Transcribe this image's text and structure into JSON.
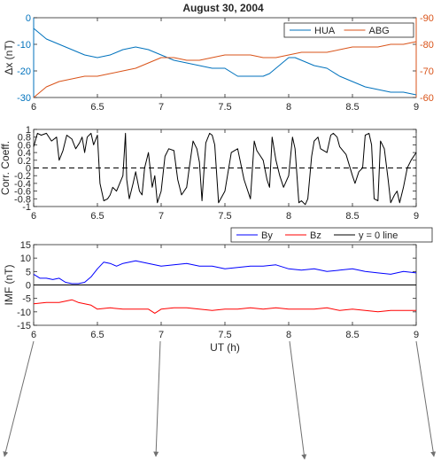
{
  "chart_data": [
    {
      "type": "line",
      "title": "August 30, 2004",
      "xlabel": "",
      "ylabel": "Δx (nT)",
      "xlim": [
        6,
        9
      ],
      "ylim": [
        -30,
        0
      ],
      "y2lim": [
        -90,
        -60
      ],
      "x_ticks": [
        "6",
        "6.5",
        "7",
        "7.5",
        "8",
        "8.5",
        "9"
      ],
      "y_ticks": [
        "0",
        "-10",
        "-20",
        "-30"
      ],
      "y2_ticks": [
        "-60",
        "-70",
        "-80",
        "-90"
      ],
      "legend_position": "top-right",
      "colors": {
        "HUA": "#0072bd",
        "ABG": "#d95319"
      },
      "series": [
        {
          "name": "HUA",
          "axis": "left",
          "x": [
            6.0,
            6.05,
            6.1,
            6.2,
            6.3,
            6.4,
            6.5,
            6.6,
            6.7,
            6.8,
            6.9,
            7.0,
            7.1,
            7.2,
            7.3,
            7.4,
            7.5,
            7.6,
            7.7,
            7.8,
            7.85,
            7.9,
            7.95,
            8.0,
            8.05,
            8.1,
            8.2,
            8.3,
            8.4,
            8.5,
            8.6,
            8.7,
            8.8,
            8.9,
            9.0
          ],
          "values": [
            -4,
            -6,
            -8,
            -10,
            -12,
            -14,
            -15,
            -14,
            -12,
            -11,
            -12,
            -14,
            -16,
            -17,
            -18,
            -19,
            -19,
            -22,
            -22,
            -22,
            -21,
            -19,
            -17,
            -15,
            -15,
            -16,
            -18,
            -19,
            -22,
            -24,
            -26,
            -27,
            -28,
            -28,
            -29
          ]
        },
        {
          "name": "ABG",
          "axis": "right",
          "x": [
            6.0,
            6.05,
            6.1,
            6.2,
            6.3,
            6.4,
            6.5,
            6.6,
            6.7,
            6.8,
            6.9,
            7.0,
            7.1,
            7.2,
            7.3,
            7.4,
            7.5,
            7.6,
            7.7,
            7.8,
            7.9,
            8.0,
            8.1,
            8.2,
            8.3,
            8.4,
            8.5,
            8.6,
            8.7,
            8.8,
            8.9,
            9.0
          ],
          "values": [
            -60,
            -62,
            -64,
            -66,
            -67,
            -68,
            -68,
            -69,
            -70,
            -71,
            -73,
            -75,
            -75,
            -74,
            -74,
            -75,
            -76,
            -76,
            -76,
            -75,
            -75,
            -76,
            -77,
            -77,
            -77,
            -78,
            -79,
            -79,
            -79,
            -80,
            -80,
            -81
          ]
        }
      ]
    },
    {
      "type": "line",
      "title": "",
      "xlabel": "",
      "ylabel": "Corr. Coeff.",
      "xlim": [
        6,
        9
      ],
      "ylim": [
        -1,
        1
      ],
      "x_ticks": [
        "6",
        "6.5",
        "7",
        "7.5",
        "8",
        "8.5",
        "9"
      ],
      "y_ticks": [
        "1",
        "0.8",
        "0.6",
        "0.4",
        "0.2",
        "0",
        "-0.2",
        "-0.4",
        "-0.6",
        "-0.8",
        "-1"
      ],
      "reference_line": {
        "y": 0,
        "style": "dashed"
      },
      "colors": {
        "line": "#000000"
      },
      "series": [
        {
          "x": [
            6.0,
            6.03,
            6.06,
            6.1,
            6.14,
            6.18,
            6.2,
            6.23,
            6.26,
            6.3,
            6.33,
            6.36,
            6.38,
            6.4,
            6.42,
            6.45,
            6.47,
            6.5,
            6.52,
            6.55,
            6.58,
            6.6,
            6.62,
            6.65,
            6.7,
            6.72,
            6.73,
            6.75,
            6.78,
            6.8,
            6.83,
            6.85,
            6.87,
            6.9,
            6.93,
            6.95,
            6.97,
            7.0,
            7.03,
            7.06,
            7.1,
            7.13,
            7.16,
            7.2,
            7.22,
            7.25,
            7.28,
            7.3,
            7.32,
            7.35,
            7.38,
            7.4,
            7.42,
            7.45,
            7.5,
            7.55,
            7.6,
            7.65,
            7.7,
            7.73,
            7.75,
            7.78,
            7.8,
            7.83,
            7.85,
            7.87,
            7.9,
            7.93,
            7.96,
            8.0,
            8.03,
            8.05,
            8.08,
            8.1,
            8.13,
            8.15,
            8.18,
            8.2,
            8.23,
            8.25,
            8.3,
            8.33,
            8.35,
            8.38,
            8.4,
            8.45,
            8.5,
            8.52,
            8.55,
            8.58,
            8.6,
            8.63,
            8.65,
            8.67,
            8.7,
            8.72,
            8.75,
            8.78,
            8.8,
            8.83,
            8.85,
            8.87,
            8.9,
            8.93,
            8.96,
            9.0
          ],
          "values": [
            0.55,
            0.9,
            0.85,
            0.9,
            0.7,
            0.8,
            0.2,
            0.45,
            0.85,
            0.75,
            0.5,
            0.65,
            0.8,
            0.4,
            0.8,
            0.9,
            0.6,
            0.85,
            -0.4,
            -0.85,
            -0.8,
            -0.7,
            -0.5,
            -0.6,
            -0.2,
            0.9,
            -0.3,
            -0.8,
            -0.4,
            -0.1,
            -0.6,
            -0.7,
            0.0,
            0.4,
            -0.5,
            -0.2,
            -0.9,
            -0.6,
            0.3,
            0.5,
            0.45,
            -0.3,
            -0.7,
            -0.5,
            0.0,
            0.7,
            0.5,
            0.15,
            -0.85,
            0.65,
            0.9,
            0.85,
            0.6,
            -0.9,
            -0.6,
            0.4,
            0.5,
            -0.3,
            -0.8,
            0.7,
            0.45,
            0.3,
            0.2,
            -0.3,
            -0.5,
            0.8,
            0.2,
            -0.2,
            -0.5,
            -0.2,
            0.8,
            0.5,
            -0.9,
            -0.85,
            -0.95,
            -0.8,
            0.3,
            0.7,
            0.8,
            0.5,
            0.4,
            0.85,
            0.9,
            0.8,
            0.55,
            0.35,
            -0.2,
            -0.4,
            -0.1,
            0.0,
            0.85,
            0.9,
            0.6,
            -0.8,
            -0.85,
            0.7,
            0.5,
            -0.3,
            -0.9,
            -0.7,
            -0.6,
            -0.9,
            -0.5,
            0.0,
            0.2,
            0.4
          ]
        }
      ]
    },
    {
      "type": "line",
      "title": "",
      "xlabel": "UT (h)",
      "ylabel": "IMF (nT)",
      "xlim": [
        6,
        9
      ],
      "ylim": [
        -15,
        15
      ],
      "x_ticks": [
        "6",
        "6.5",
        "7",
        "7.5",
        "8",
        "8.5",
        "9"
      ],
      "y_ticks": [
        "15",
        "10",
        "5",
        "0",
        "-5",
        "-10",
        "-15"
      ],
      "legend_position": "top-right",
      "colors": {
        "By": "#0000ff",
        "Bz": "#ff0000",
        "y = 0 line": "#000000"
      },
      "series": [
        {
          "name": "By",
          "x": [
            6.0,
            6.05,
            6.1,
            6.15,
            6.2,
            6.25,
            6.3,
            6.35,
            6.4,
            6.45,
            6.5,
            6.55,
            6.6,
            6.65,
            6.7,
            6.8,
            6.9,
            7.0,
            7.1,
            7.2,
            7.3,
            7.4,
            7.5,
            7.6,
            7.7,
            7.8,
            7.9,
            8.0,
            8.1,
            8.2,
            8.3,
            8.4,
            8.5,
            8.6,
            8.7,
            8.8,
            8.9,
            9.0
          ],
          "values": [
            4,
            2.5,
            2.5,
            2,
            2.5,
            1,
            0.5,
            0.5,
            1,
            3,
            6,
            8.5,
            8,
            7,
            8,
            9,
            8,
            7,
            7.5,
            8,
            7,
            7,
            6,
            6.5,
            7,
            7,
            7.5,
            6,
            5.5,
            6,
            5,
            5.5,
            6,
            5,
            4.5,
            4,
            5,
            4.5
          ]
        },
        {
          "name": "Bz",
          "x": [
            6.0,
            6.1,
            6.2,
            6.3,
            6.35,
            6.4,
            6.45,
            6.5,
            6.6,
            6.7,
            6.8,
            6.9,
            6.95,
            7.0,
            7.1,
            7.2,
            7.3,
            7.4,
            7.5,
            7.6,
            7.7,
            7.8,
            7.9,
            8.0,
            8.1,
            8.2,
            8.3,
            8.4,
            8.5,
            8.6,
            8.7,
            8.8,
            8.9,
            9.0
          ],
          "values": [
            -7,
            -6.5,
            -6.5,
            -5.5,
            -6.5,
            -7,
            -7.5,
            -9,
            -8.5,
            -9,
            -9,
            -9,
            -10.5,
            -9,
            -8.5,
            -8.5,
            -9,
            -9.5,
            -9,
            -9,
            -8.5,
            -9,
            -8.5,
            -9,
            -9,
            -9,
            -8.5,
            -9.5,
            -9,
            -9.5,
            -10,
            -9.5,
            -9.5,
            -9.5
          ]
        },
        {
          "name": "y = 0 line",
          "x": [
            6,
            9
          ],
          "values": [
            0,
            0
          ]
        }
      ]
    }
  ]
}
